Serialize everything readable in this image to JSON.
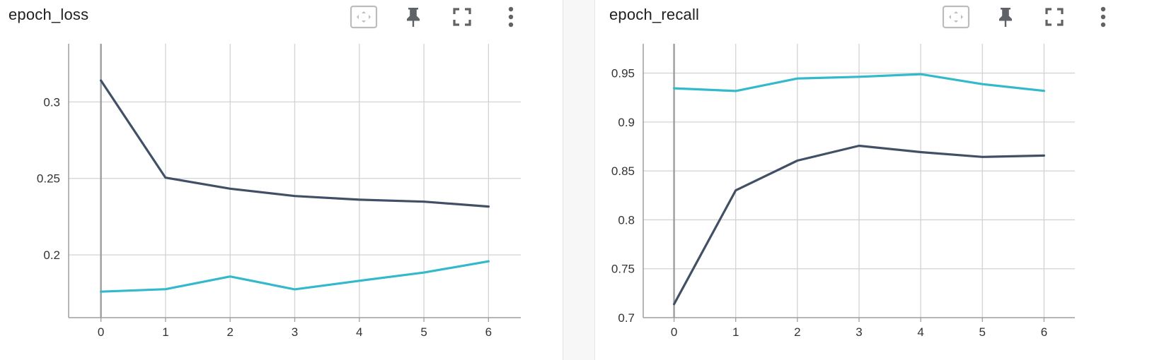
{
  "cards": [
    {
      "title": "epoch_loss",
      "toolbar": {
        "icons": [
          "fit-domain-icon",
          "pin-icon",
          "fullscreen-icon",
          "more-vert-icon"
        ]
      }
    },
    {
      "title": "epoch_recall",
      "toolbar": {
        "icons": [
          "fit-domain-icon",
          "pin-icon",
          "fullscreen-icon",
          "more-vert-icon"
        ]
      }
    }
  ],
  "colors": {
    "dark_series": "#425066",
    "cyan_series": "#33b9cc",
    "grid": "#d3d3d3",
    "axis": "#9e9e9e"
  },
  "chart_data": [
    {
      "type": "line",
      "title": "epoch_loss",
      "xlabel": "",
      "ylabel": "",
      "x": [
        0,
        1,
        2,
        3,
        4,
        5,
        6
      ],
      "xticks": [
        "0",
        "1",
        "2",
        "3",
        "4",
        "5",
        "6"
      ],
      "yticks": [
        "0.2",
        "0.25",
        "0.3"
      ],
      "ytick_values": [
        0.2,
        0.25,
        0.3
      ],
      "ylim": [
        0.159,
        0.338
      ],
      "xlim": [
        -0.5,
        6.5
      ],
      "grid": true,
      "series": [
        {
          "color": "#425066",
          "values": [
            0.314,
            0.2505,
            0.2433,
            0.2385,
            0.2361,
            0.2348,
            0.2316
          ]
        },
        {
          "color": "#33b9cc",
          "values": [
            0.176,
            0.1776,
            0.1859,
            0.1775,
            0.1831,
            0.1885,
            0.1958
          ]
        }
      ]
    },
    {
      "type": "line",
      "title": "epoch_recall",
      "xlabel": "",
      "ylabel": "",
      "x": [
        0,
        1,
        2,
        3,
        4,
        5,
        6
      ],
      "xticks": [
        "0",
        "1",
        "2",
        "3",
        "4",
        "5",
        "6"
      ],
      "yticks": [
        "0.7",
        "0.75",
        "0.8",
        "0.85",
        "0.9",
        "0.95"
      ],
      "ytick_values": [
        0.7,
        0.75,
        0.8,
        0.85,
        0.9,
        0.95
      ],
      "ylim": [
        0.7,
        0.98
      ],
      "xlim": [
        -0.5,
        6.5
      ],
      "grid": true,
      "series": [
        {
          "color": "#33b9cc",
          "values": [
            0.9345,
            0.9317,
            0.9445,
            0.9462,
            0.9489,
            0.9387,
            0.9319
          ]
        },
        {
          "color": "#425066",
          "values": [
            0.7138,
            0.8301,
            0.8606,
            0.8757,
            0.8692,
            0.8643,
            0.8657
          ]
        }
      ]
    }
  ]
}
